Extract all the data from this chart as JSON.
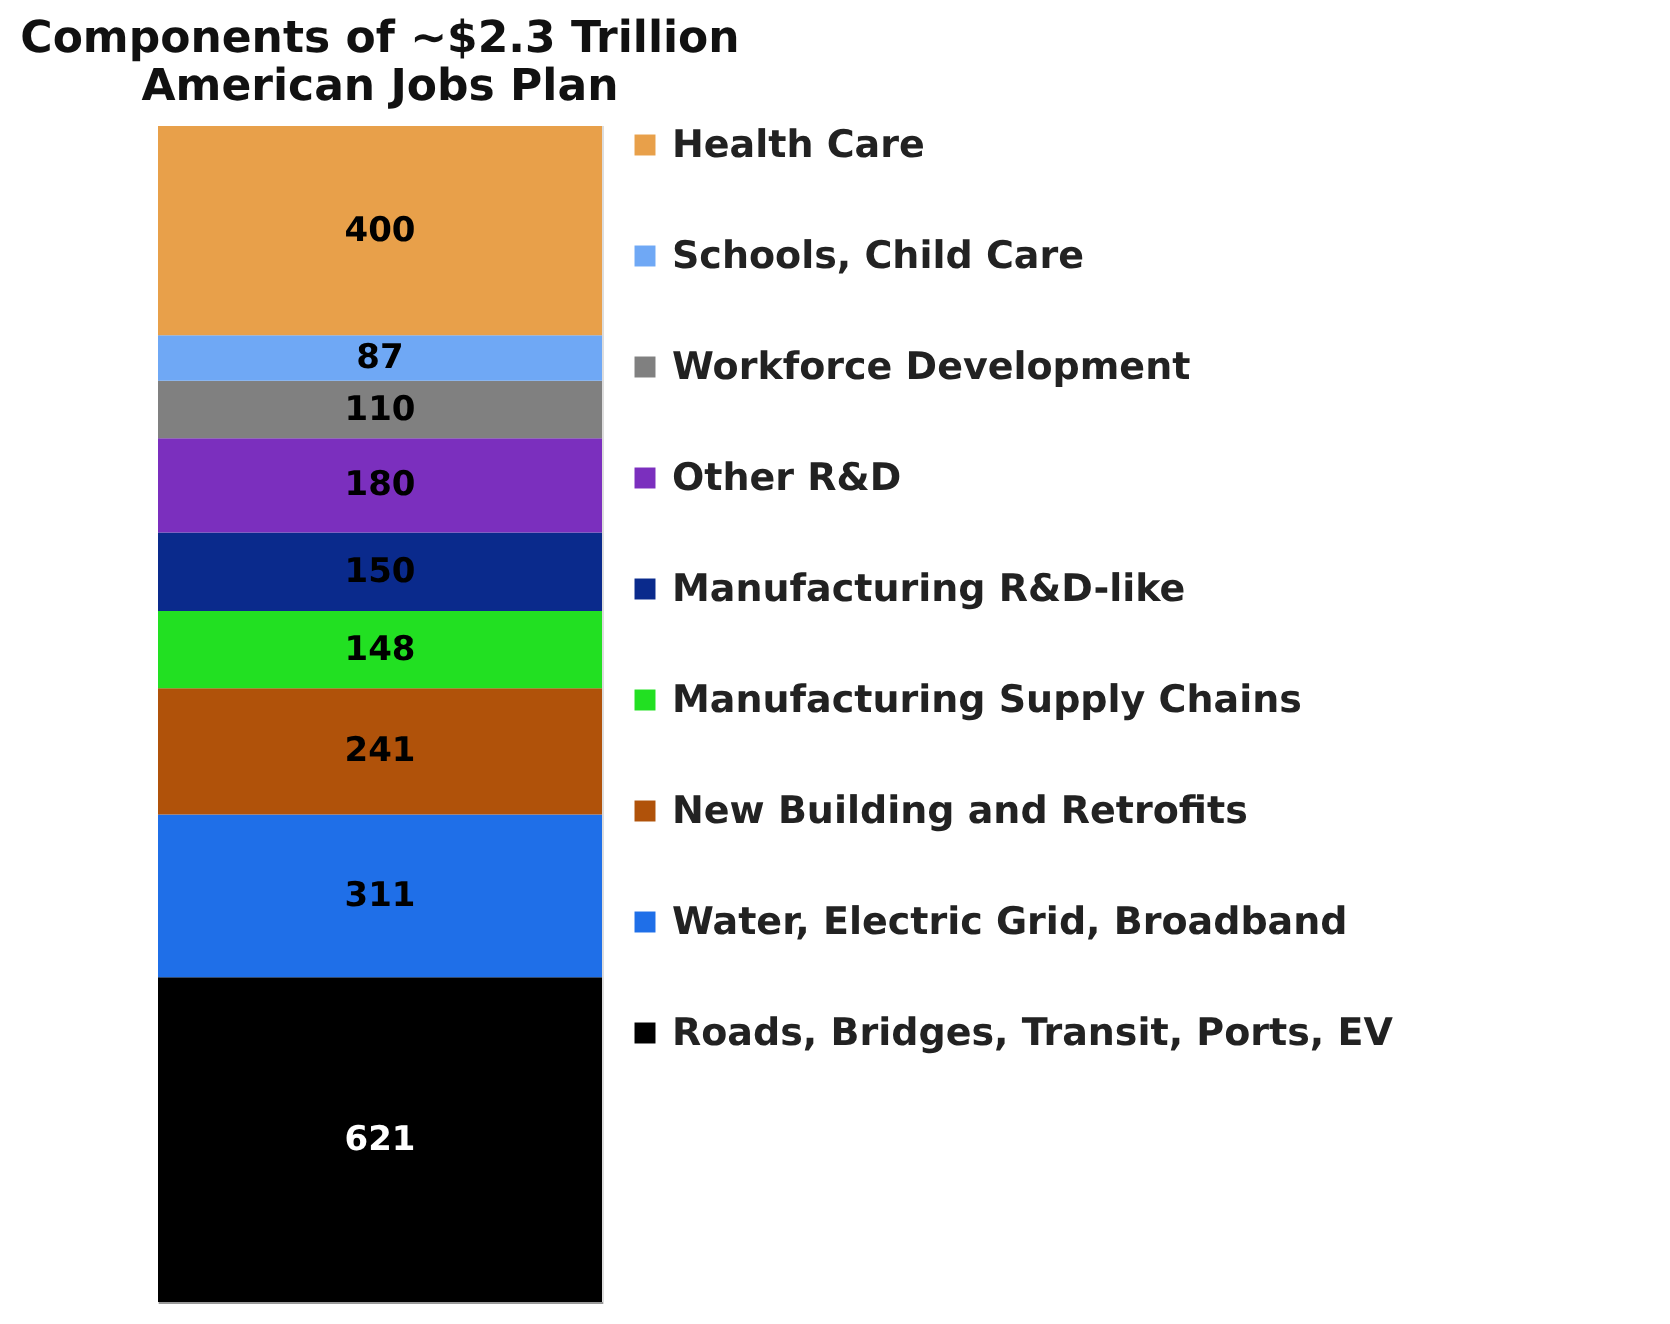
{
  "chart_data": {
    "type": "bar",
    "title": "Components of ~$2.3 Trillion\nAmerican Jobs Plan",
    "categories": [
      null
    ],
    "stacked": true,
    "data_labels": true,
    "legend": "right",
    "tick_labels": false,
    "series": [
      {
        "name": "Roads, Bridges, Transit, Ports, EV",
        "color": "#000000",
        "values": [
          621
        ]
      },
      {
        "name": "Water, Electric Grid, Broadband",
        "color": "#1f6fe8",
        "values": [
          311
        ]
      },
      {
        "name": "New Building and Retrofits",
        "color": "#b0520a",
        "values": [
          241
        ]
      },
      {
        "name": "Manufacturing Supply Chains",
        "color": "#22e022",
        "values": [
          148
        ]
      },
      {
        "name": "Manufacturing R&D-like",
        "color": "#0a2a8c",
        "values": [
          150
        ]
      },
      {
        "name": "Other R&D",
        "color": "#7b2fbe",
        "values": [
          180
        ]
      },
      {
        "name": "Workforce Development",
        "color": "#808080",
        "values": [
          110
        ]
      },
      {
        "name": "Schools, Child Care",
        "color": "#6fa8f5",
        "values": [
          87
        ]
      },
      {
        "name": "Health Care",
        "color": "#e8a04a",
        "values": [
          400
        ]
      }
    ]
  }
}
